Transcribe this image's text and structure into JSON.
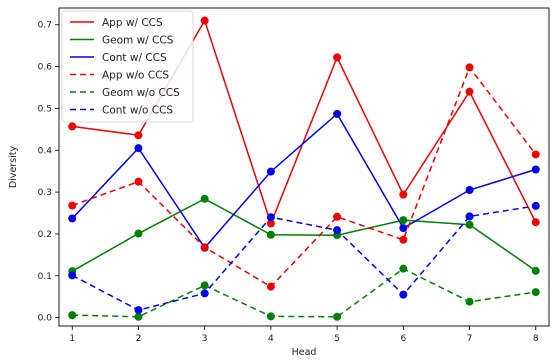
{
  "chart_data": {
    "type": "line",
    "title": "",
    "xlabel": "Head",
    "ylabel": "Diversity",
    "x": [
      1,
      2,
      3,
      4,
      5,
      6,
      7,
      8
    ],
    "xlim": [
      0.8,
      8.2
    ],
    "ylim": [
      -0.02,
      0.74
    ],
    "yticks": [
      0.0,
      0.1,
      0.2,
      0.3,
      0.4,
      0.5,
      0.6,
      0.7
    ],
    "ytick_labels": [
      "0.0",
      "0.1",
      "0.2",
      "0.3",
      "0.4",
      "0.5",
      "0.6",
      "0.7"
    ],
    "xtick_labels": [
      "1",
      "2",
      "3",
      "4",
      "5",
      "6",
      "7",
      "8"
    ],
    "grid": false,
    "legend_position": "top-left",
    "series": [
      {
        "name": "App w/ CCS",
        "color": "#ee0000",
        "style": "solid",
        "values": [
          0.457,
          0.436,
          0.71,
          0.225,
          0.622,
          0.294,
          0.54,
          0.228
        ]
      },
      {
        "name": "Geom w/ CCS",
        "color": "#008000",
        "style": "solid",
        "values": [
          0.111,
          0.201,
          0.284,
          0.198,
          0.197,
          0.233,
          0.222,
          0.112
        ]
      },
      {
        "name": "Cont w/ CCS",
        "color": "#0000ee",
        "style": "solid",
        "values": [
          0.237,
          0.405,
          0.167,
          0.349,
          0.487,
          0.214,
          0.305,
          0.354
        ]
      },
      {
        "name": "App w/o CCS",
        "color": "#ee0000",
        "style": "dashed",
        "values": [
          0.268,
          0.325,
          0.168,
          0.074,
          0.241,
          0.186,
          0.598,
          0.39
        ]
      },
      {
        "name": "Geom w/o CCS",
        "color": "#008000",
        "style": "dashed",
        "values": [
          0.006,
          0.002,
          0.077,
          0.003,
          0.002,
          0.117,
          0.038,
          0.061
        ]
      },
      {
        "name": "Cont w/o CCS",
        "color": "#0000ee",
        "style": "dashed",
        "values": [
          0.101,
          0.018,
          0.058,
          0.24,
          0.209,
          0.055,
          0.242,
          0.267
        ]
      }
    ]
  }
}
